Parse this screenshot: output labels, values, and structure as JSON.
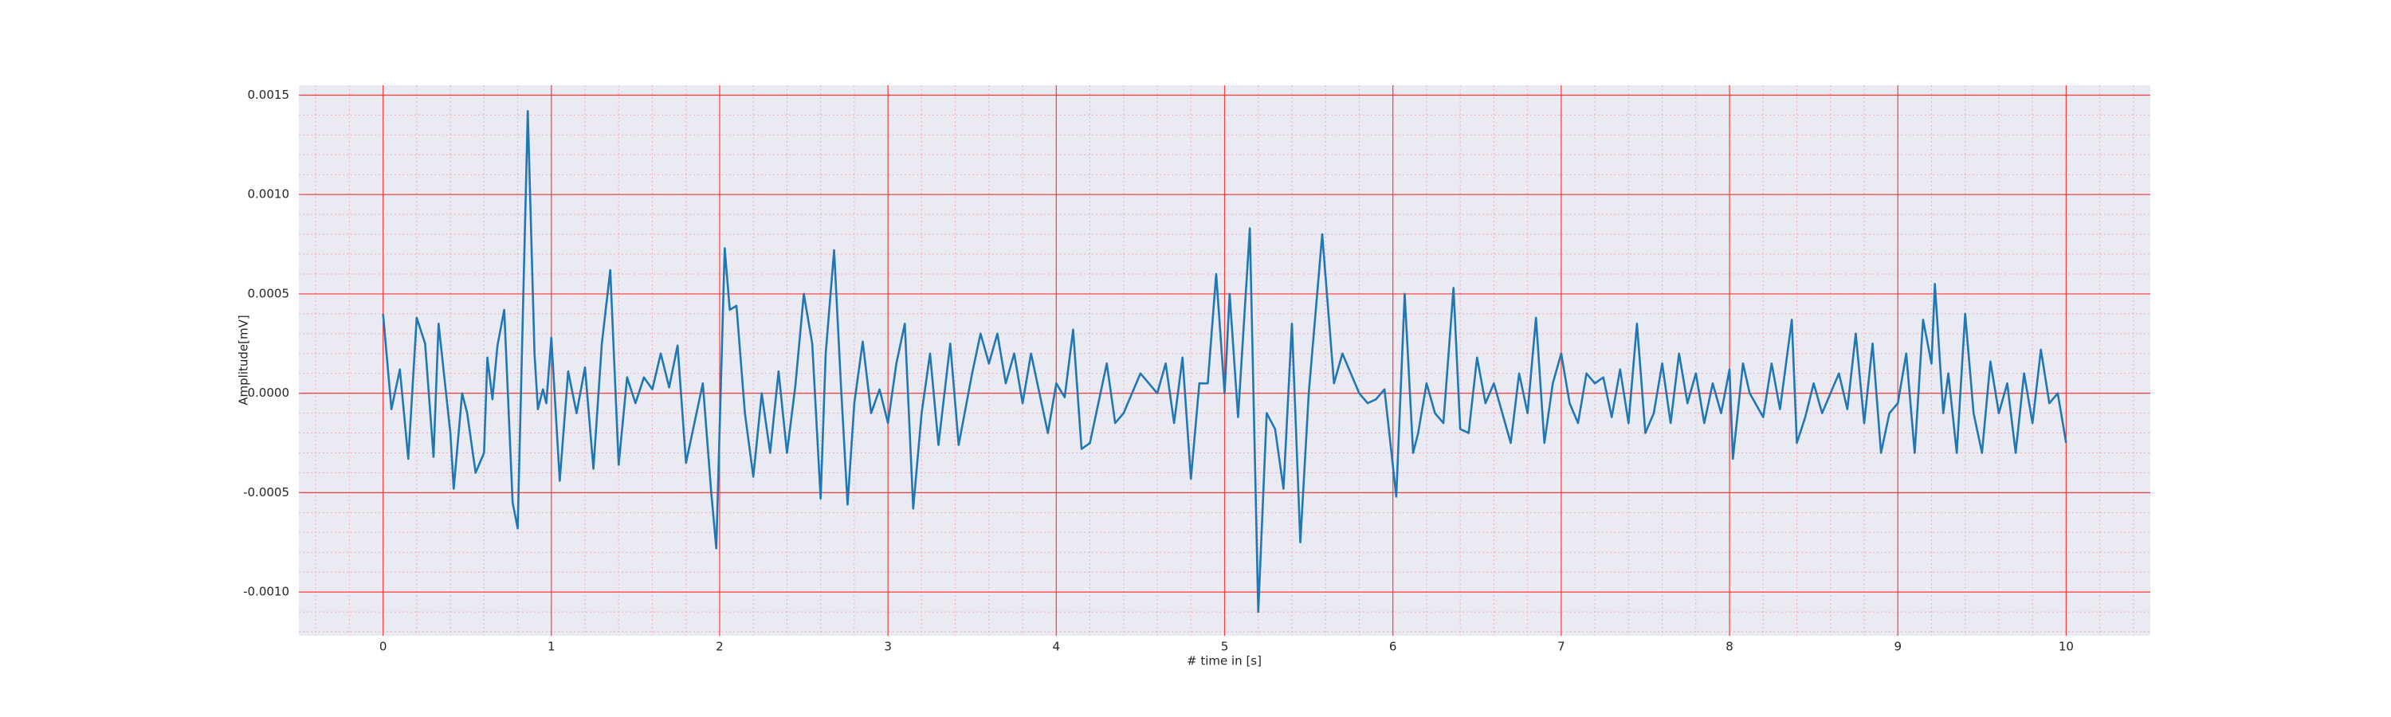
{
  "chart_data": {
    "type": "line",
    "xlabel": "# time in [s]",
    "ylabel": "Amplitude[mV]",
    "xlim": [
      -0.5,
      10.5
    ],
    "ylim": [
      -0.00122,
      0.00155
    ],
    "xticks": [
      0,
      1,
      2,
      3,
      4,
      5,
      6,
      7,
      8,
      9,
      10
    ],
    "yticks": [
      {
        "value": -0.001,
        "label": "-0.0010"
      },
      -0.0005,
      {
        "value": 0,
        "label": "0.0000"
      },
      0.0005,
      {
        "value": 0.001,
        "label": "0.0010"
      },
      0.0015
    ],
    "grid": true,
    "minor_grid": true,
    "series": [
      {
        "color": "#1f77b4",
        "x": [
          0,
          0.05,
          0.1,
          0.15,
          0.2,
          0.25,
          0.3,
          0.33,
          0.4,
          0.42,
          0.47,
          0.5,
          0.55,
          0.6,
          0.62,
          0.65,
          0.68,
          0.72,
          0.77,
          0.8,
          0.86,
          0.9,
          0.92,
          0.95,
          0.97,
          1.0,
          1.05,
          1.1,
          1.15,
          1.2,
          1.25,
          1.3,
          1.35,
          1.4,
          1.45,
          1.5,
          1.55,
          1.6,
          1.65,
          1.7,
          1.75,
          1.8,
          1.85,
          1.9,
          1.95,
          1.98,
          2.03,
          2.06,
          2.1,
          2.15,
          2.2,
          2.25,
          2.3,
          2.35,
          2.4,
          2.45,
          2.5,
          2.55,
          2.6,
          2.63,
          2.68,
          2.72,
          2.76,
          2.8,
          2.85,
          2.9,
          2.95,
          3.0,
          3.05,
          3.1,
          3.15,
          3.2,
          3.25,
          3.3,
          3.37,
          3.42,
          3.5,
          3.55,
          3.6,
          3.65,
          3.7,
          3.75,
          3.8,
          3.85,
          3.9,
          3.95,
          4.0,
          4.05,
          4.1,
          4.15,
          4.2,
          4.3,
          4.35,
          4.4,
          4.5,
          4.6,
          4.65,
          4.7,
          4.75,
          4.8,
          4.85,
          4.9,
          4.95,
          5.0,
          5.03,
          5.08,
          5.15,
          5.2,
          5.25,
          5.3,
          5.35,
          5.4,
          5.45,
          5.5,
          5.58,
          5.65,
          5.7,
          5.75,
          5.8,
          5.85,
          5.9,
          5.95,
          6.02,
          6.07,
          6.12,
          6.15,
          6.2,
          6.25,
          6.3,
          6.36,
          6.4,
          6.45,
          6.5,
          6.55,
          6.6,
          6.65,
          6.7,
          6.75,
          6.8,
          6.85,
          6.9,
          6.95,
          7.0,
          7.05,
          7.1,
          7.15,
          7.2,
          7.25,
          7.3,
          7.35,
          7.4,
          7.45,
          7.5,
          7.55,
          7.6,
          7.65,
          7.7,
          7.75,
          7.8,
          7.85,
          7.9,
          7.95,
          8.0,
          8.02,
          8.08,
          8.12,
          8.2,
          8.25,
          8.3,
          8.37,
          8.4,
          8.45,
          8.5,
          8.55,
          8.6,
          8.65,
          8.7,
          8.75,
          8.8,
          8.85,
          8.9,
          8.95,
          9.0,
          9.05,
          9.1,
          9.15,
          9.2,
          9.22,
          9.27,
          9.3,
          9.35,
          9.4,
          9.45,
          9.5,
          9.55,
          9.6,
          9.65,
          9.7,
          9.75,
          9.8,
          9.85,
          9.9,
          9.95,
          10.0
        ],
        "values": [
          0.0004,
          -8e-05,
          0.00012,
          -0.00033,
          0.00038,
          0.00025,
          -0.00032,
          0.00035,
          -0.0002,
          -0.00048,
          0,
          -0.0001,
          -0.0004,
          -0.0003,
          0.00018,
          -3e-05,
          0.00024,
          0.00042,
          -0.00055,
          -0.00068,
          0.00142,
          0.0002,
          -8e-05,
          2e-05,
          -5e-05,
          0.00028,
          -0.00044,
          0.00011,
          -0.0001,
          0.00013,
          -0.00038,
          0.00025,
          0.00062,
          -0.00036,
          8e-05,
          -5e-05,
          8e-05,
          2e-05,
          0.0002,
          3e-05,
          0.00024,
          -0.00035,
          -0.00015,
          5e-05,
          -0.0005,
          -0.00078,
          0.00073,
          0.00042,
          0.00044,
          -0.0001,
          -0.00042,
          0,
          -0.0003,
          0.00011,
          -0.0003,
          4e-05,
          0.0005,
          0.00025,
          -0.00053,
          0.0002,
          0.00072,
          5e-05,
          -0.00056,
          -5e-05,
          0.00026,
          -0.0001,
          2e-05,
          -0.00015,
          0.00015,
          0.00035,
          -0.00058,
          -0.0001,
          0.0002,
          -0.00026,
          0.00025,
          -0.00026,
          0.0001,
          0.0003,
          0.00015,
          0.0003,
          5e-05,
          0.0002,
          -5e-05,
          0.0002,
          0,
          -0.0002,
          5e-05,
          -2e-05,
          0.00032,
          -0.00028,
          -0.00025,
          0.00015,
          -0.00015,
          -0.0001,
          0.0001,
          0,
          0.00015,
          -0.00015,
          0.00018,
          -0.00043,
          5e-05,
          5e-05,
          0.0006,
          0,
          0.0005,
          -0.00012,
          0.00083,
          -0.0011,
          -0.0001,
          -0.00018,
          -0.00048,
          0.00035,
          -0.00075,
          0,
          0.0008,
          5e-05,
          0.0002,
          0.0001,
          0,
          -5e-05,
          -3e-05,
          2e-05,
          -0.00052,
          0.0005,
          -0.0003,
          -0.0002,
          5e-05,
          -0.0001,
          -0.00015,
          0.00053,
          -0.00018,
          -0.0002,
          0.00018,
          -5e-05,
          5e-05,
          -0.0001,
          -0.00025,
          0.0001,
          -0.0001,
          0.00038,
          -0.00025,
          5e-05,
          0.0002,
          -5e-05,
          -0.00015,
          0.0001,
          5e-05,
          8e-05,
          -0.00012,
          0.00012,
          -0.00015,
          0.00035,
          -0.0002,
          -0.0001,
          0.00015,
          -0.00015,
          0.0002,
          -5e-05,
          0.0001,
          -0.00015,
          5e-05,
          -0.0001,
          0.00012,
          -0.00033,
          0.00015,
          0,
          -0.00012,
          0.00015,
          -8e-05,
          0.00037,
          -0.00025,
          -0.00012,
          5e-05,
          -0.0001,
          0,
          0.0001,
          -8e-05,
          0.0003,
          -0.00015,
          0.00025,
          -0.0003,
          -0.0001,
          -5e-05,
          0.0002,
          -0.0003,
          0.00037,
          0.00015,
          0.00055,
          -0.0001,
          0.0001,
          -0.0003,
          0.0004,
          -0.0001,
          -0.0003,
          0.00016,
          -0.0001,
          5e-05,
          -0.0003,
          0.0001,
          -0.00015,
          0.00022,
          -5e-05,
          0,
          -0.00025
        ]
      }
    ]
  }
}
